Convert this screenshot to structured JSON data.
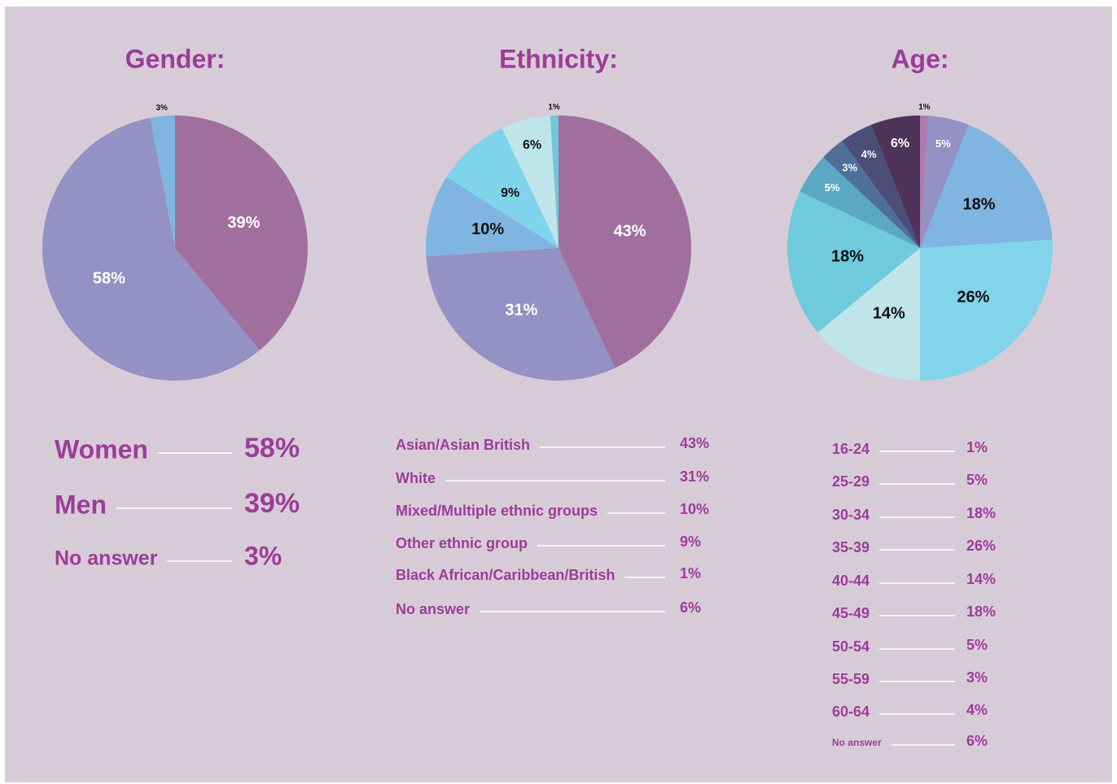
{
  "chart_data": [
    {
      "type": "pie",
      "title": "Gender:",
      "categories": [
        "Men",
        "Women",
        "No answer"
      ],
      "values": [
        39,
        58,
        3
      ],
      "value_labels": [
        "39%",
        "58%",
        "3%"
      ],
      "colors": [
        "#a06f9e",
        "#9491c4",
        "#7fb5e0"
      ]
    },
    {
      "type": "pie",
      "title": "Ethnicity:",
      "categories": [
        "Asian/Asian British",
        "White",
        "Mixed/Multiple ethnic groups",
        "Other ethnic group",
        "No answer",
        "Black African/Caribbean/British"
      ],
      "values": [
        43,
        31,
        10,
        9,
        6,
        1
      ],
      "value_labels": [
        "43%",
        "31%",
        "10%",
        "9%",
        "6%",
        "1%"
      ],
      "colors": [
        "#a06f9e",
        "#9491c4",
        "#7fb5e0",
        "#7fd3ea",
        "#bde5ea",
        "#6fc8d8"
      ]
    },
    {
      "type": "pie",
      "title": "Age:",
      "categories": [
        "16-24",
        "25-29",
        "30-34",
        "35-39",
        "40-44",
        "45-49",
        "50-54",
        "55-59",
        "60-64",
        "No answer"
      ],
      "values": [
        1,
        5,
        18,
        26,
        14,
        18,
        5,
        3,
        4,
        6
      ],
      "value_labels": [
        "1%",
        "5%",
        "18%",
        "26%",
        "14%",
        "18%",
        "5%",
        "3%",
        "4%",
        "6%"
      ],
      "colors": [
        "#b07ab0",
        "#9491c4",
        "#7fb5e0",
        "#82d4ea",
        "#bfe5ea",
        "#6fcbdc",
        "#5aa8c4",
        "#4f6f99",
        "#4b4f78",
        "#4e3358"
      ]
    }
  ]
}
